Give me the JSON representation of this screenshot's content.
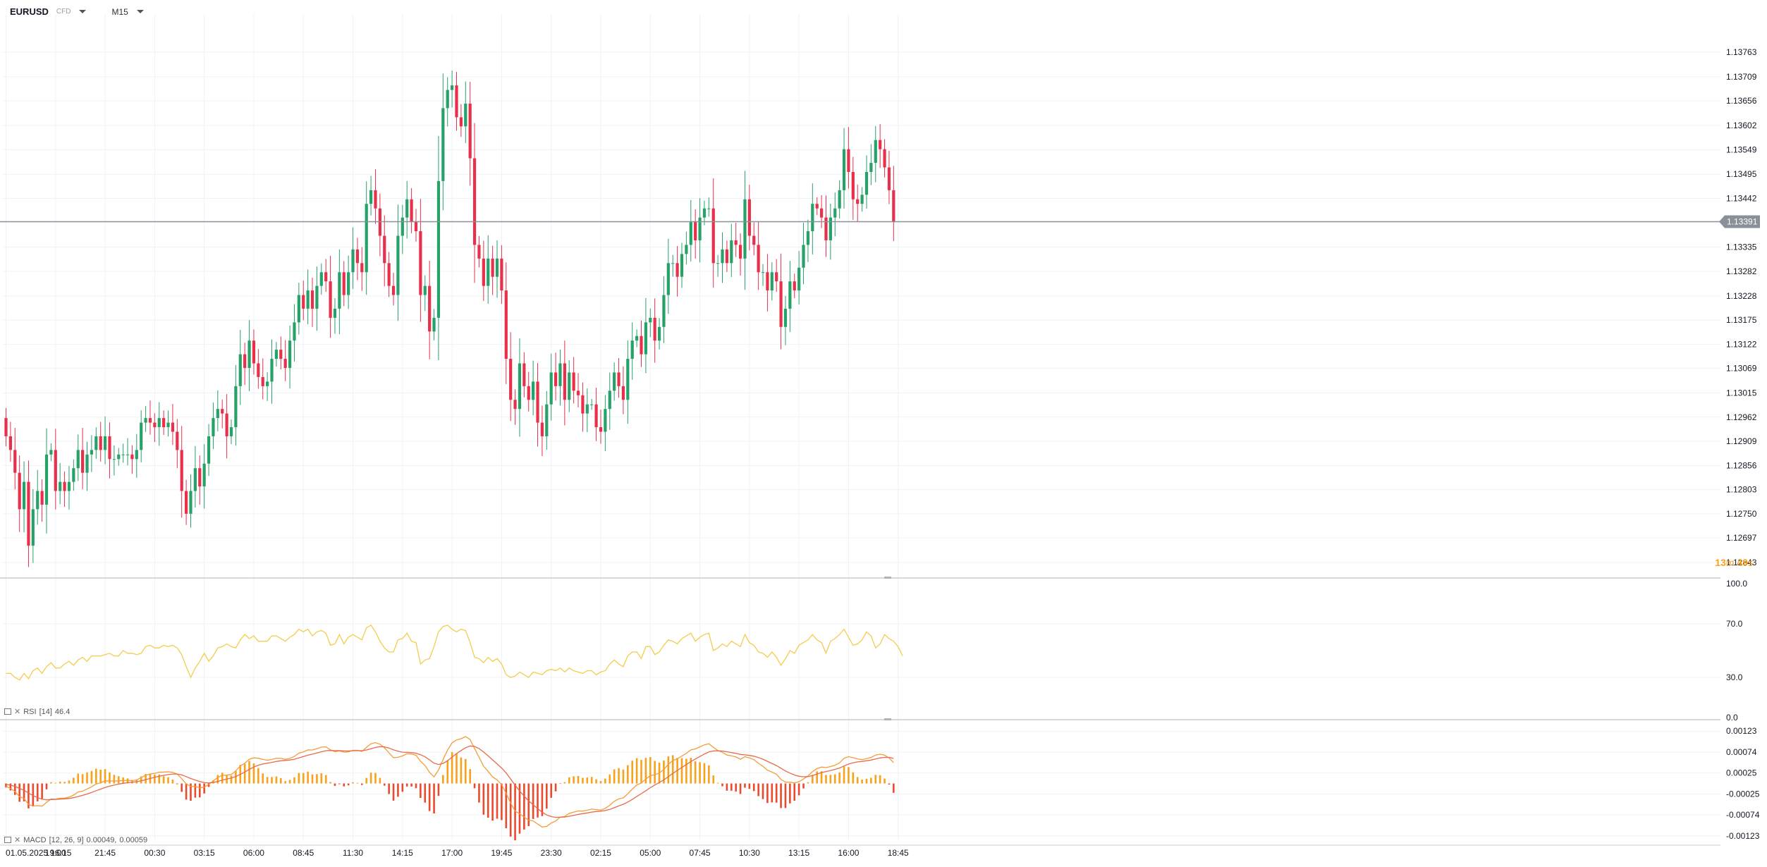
{
  "header": {
    "symbol": "EURUSD",
    "source": "CFD",
    "timeframe": "M15"
  },
  "timer": {
    "minutes": "13",
    "m_unit": "m",
    "seconds": "49",
    "s_unit": "s"
  },
  "colors": {
    "up": "#26a269",
    "down": "#e8304a",
    "rsi": "#f3cc4d",
    "macd_line": "#f39c3a",
    "signal_line": "#e86a4a",
    "hist_up": "#f7a21b",
    "hist_down": "#ea4a2e",
    "grid": "#f0f2f5",
    "current_price": "#8a9099"
  },
  "rsi_label": {
    "name": "RSI",
    "params": "[14]",
    "value": "46.4"
  },
  "macd_label": {
    "name": "MACD",
    "params": "[12, 26, 9]",
    "value1": "0.00049,",
    "value2": "0.00059"
  },
  "chart_data": [
    {
      "type": "candlestick",
      "title": "EURUSD M15",
      "current_price": 1.13391,
      "current_price_label": "1.13391",
      "ylim": [
        1.1264,
        1.138
      ],
      "y_ticks": [
        "1.13763",
        "1.13709",
        "1.13656",
        "1.13602",
        "1.13549",
        "1.13495",
        "1.13442",
        "1.13335",
        "1.13282",
        "1.13228",
        "1.13175",
        "1.13122",
        "1.13069",
        "1.13015",
        "1.12962",
        "1.12909",
        "1.12856",
        "1.12803",
        "1.12750",
        "1.12697",
        "1.12643"
      ],
      "x_ticks": [
        {
          "label": "01.05.2025  16:15",
          "index": 0
        },
        {
          "label": "19:00",
          "index": 11
        },
        {
          "label": "21:45",
          "index": 22
        },
        {
          "label": "00:30",
          "index": 33
        },
        {
          "label": "03:15",
          "index": 44
        },
        {
          "label": "06:00",
          "index": 55
        },
        {
          "label": "08:45",
          "index": 66
        },
        {
          "label": "11:30",
          "index": 77
        },
        {
          "label": "14:15",
          "index": 88
        },
        {
          "label": "17:00",
          "index": 99
        },
        {
          "label": "19:45",
          "index": 110
        },
        {
          "label": "23:30",
          "index": 121
        },
        {
          "label": "02:15",
          "index": 132
        },
        {
          "label": "05:00",
          "index": 143
        },
        {
          "label": "07:45",
          "index": 154
        },
        {
          "label": "10:30",
          "index": 165
        },
        {
          "label": "13:15",
          "index": 176
        },
        {
          "label": "16:00",
          "index": 187
        },
        {
          "label": "18:45",
          "index": 198
        }
      ],
      "first_close": 1.1296,
      "closes": [
        1.1292,
        1.1289,
        1.1284,
        1.1276,
        1.1282,
        1.1268,
        1.1276,
        1.128,
        1.1277,
        1.1288,
        1.1289,
        1.128,
        1.1282,
        1.128,
        1.1282,
        1.1285,
        1.1289,
        1.1284,
        1.1288,
        1.1289,
        1.1292,
        1.1289,
        1.1292,
        1.1287,
        1.1287,
        1.1288,
        1.1288,
        1.1288,
        1.1287,
        1.1289,
        1.1295,
        1.1296,
        1.1295,
        1.1294,
        1.1296,
        1.1294,
        1.1295,
        1.1293,
        1.1289,
        1.128,
        1.1275,
        1.128,
        1.1285,
        1.1281,
        1.1286,
        1.1292,
        1.1296,
        1.1298,
        1.1297,
        1.1292,
        1.1294,
        1.1303,
        1.131,
        1.1307,
        1.1313,
        1.1308,
        1.1305,
        1.1303,
        1.1304,
        1.1309,
        1.1311,
        1.1309,
        1.1307,
        1.1313,
        1.1317,
        1.1323,
        1.132,
        1.1324,
        1.132,
        1.1325,
        1.1328,
        1.1326,
        1.1318,
        1.132,
        1.1328,
        1.1323,
        1.1328,
        1.1333,
        1.133,
        1.1328,
        1.1343,
        1.1346,
        1.1342,
        1.1336,
        1.133,
        1.1325,
        1.1323,
        1.1336,
        1.134,
        1.1344,
        1.1339,
        1.1337,
        1.1323,
        1.1325,
        1.1315,
        1.1318,
        1.1348,
        1.1364,
        1.1368,
        1.1369,
        1.1362,
        1.136,
        1.1365,
        1.1353,
        1.1334,
        1.1331,
        1.1325,
        1.1331,
        1.1327,
        1.1331,
        1.1324,
        1.1309,
        1.13,
        1.1298,
        1.1308,
        1.1303,
        1.13,
        1.1304,
        1.1295,
        1.1292,
        1.1299,
        1.1306,
        1.1303,
        1.1308,
        1.13,
        1.1306,
        1.1302,
        1.1301,
        1.1297,
        1.1299,
        1.1299,
        1.1294,
        1.1293,
        1.1298,
        1.1302,
        1.1306,
        1.1303,
        1.13,
        1.1309,
        1.1313,
        1.1314,
        1.131,
        1.1317,
        1.1318,
        1.1313,
        1.1316,
        1.1323,
        1.133,
        1.133,
        1.1327,
        1.1332,
        1.1334,
        1.1339,
        1.1335,
        1.134,
        1.1342,
        1.1342,
        1.133,
        1.133,
        1.1333,
        1.133,
        1.1335,
        1.1334,
        1.1331,
        1.1344,
        1.1336,
        1.1334,
        1.1328,
        1.1328,
        1.1324,
        1.1328,
        1.1326,
        1.1316,
        1.132,
        1.1326,
        1.1324,
        1.1329,
        1.1334,
        1.1337,
        1.1343,
        1.1342,
        1.134,
        1.1335,
        1.134,
        1.1342,
        1.1346,
        1.1355,
        1.135,
        1.1344,
        1.1343,
        1.1345,
        1.135,
        1.1352,
        1.1357,
        1.1355,
        1.1351,
        1.1346,
        1.1339
      ],
      "rsi": {
        "ylim": [
          0,
          100
        ],
        "ticks": [
          "100.0",
          "70.0",
          "30.0",
          "0.0"
        ],
        "last": 46.4,
        "values": [
          33,
          33,
          30,
          28,
          33,
          29,
          35,
          37,
          33,
          38,
          41,
          37,
          37,
          40,
          42,
          39,
          43,
          45,
          42,
          46,
          46,
          46,
          47,
          48,
          46,
          46,
          50,
          48,
          48,
          47,
          48,
          53,
          54,
          52,
          52,
          54,
          53,
          54,
          52,
          47,
          38,
          30,
          37,
          42,
          48,
          42,
          46,
          52,
          53,
          55,
          53,
          52,
          58,
          62,
          59,
          61,
          57,
          57,
          57,
          61,
          61,
          59,
          57,
          60,
          62,
          66,
          64,
          66,
          61,
          64,
          65,
          63,
          54,
          55,
          62,
          55,
          60,
          62,
          60,
          58,
          67,
          69,
          64,
          57,
          52,
          49,
          49,
          58,
          59,
          63,
          57,
          56,
          40,
          43,
          44,
          53,
          64,
          68,
          69,
          66,
          64,
          66,
          65,
          56,
          45,
          44,
          41,
          45,
          42,
          44,
          40,
          32,
          30,
          31,
          34,
          32,
          30,
          34,
          33,
          32,
          35,
          36,
          35,
          37,
          34,
          37,
          35,
          34,
          33,
          35,
          35,
          32,
          34,
          35,
          40,
          43,
          40,
          38,
          46,
          49,
          49,
          44,
          53,
          53,
          47,
          49,
          54,
          58,
          57,
          55,
          59,
          61,
          63,
          57,
          60,
          62,
          63,
          50,
          52,
          55,
          53,
          57,
          55,
          53,
          62,
          56,
          54,
          49,
          48,
          45,
          49,
          45,
          39,
          44,
          50,
          48,
          54,
          56,
          58,
          62,
          58,
          56,
          48,
          57,
          59,
          62,
          66,
          60,
          54,
          55,
          58,
          64,
          61,
          52,
          55,
          62,
          59,
          57,
          53,
          46
        ],
        "label_value": "46.4"
      },
      "macd": {
        "ticks": [
          "0.00123",
          "0.00074",
          "0.00025",
          "-0.00025",
          "-0.00074",
          "-0.00123"
        ],
        "ylim": [
          -0.00135,
          0.00135
        ],
        "macd_last": 0.00049,
        "signal_last": 0.00059
      }
    }
  ]
}
